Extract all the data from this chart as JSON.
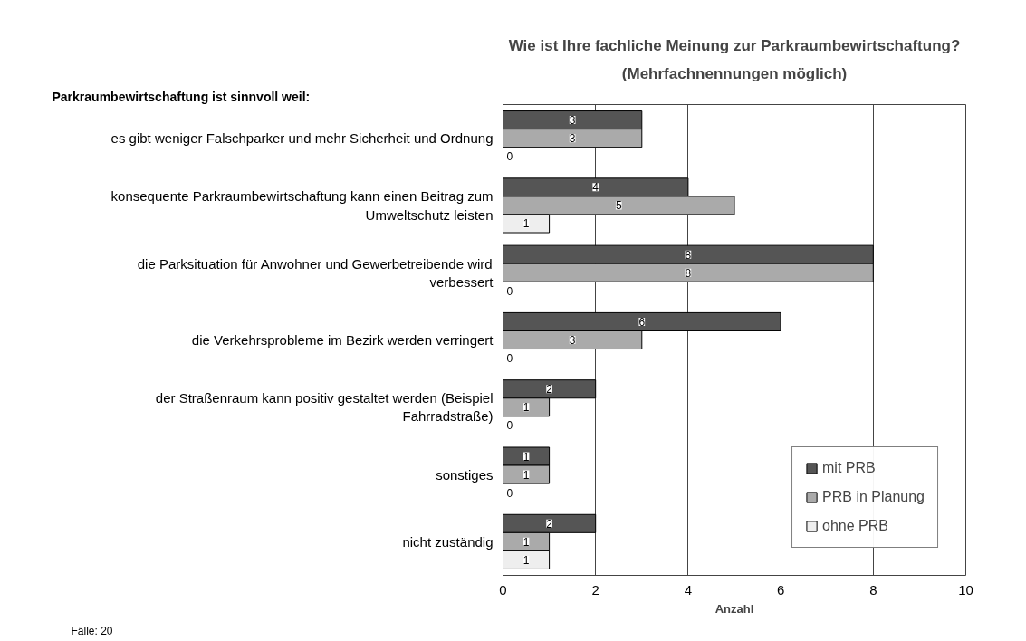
{
  "chart_data": {
    "type": "bar",
    "orientation": "horizontal",
    "title": "Wie ist Ihre fachliche Meinung zur Parkraumbewirtschaftung?",
    "subtitle": "(Mehrfachnennungen möglich)",
    "xlabel": "Anzahl",
    "categories": [
      "es gibt weniger Falschparker und mehr Sicherheit und Ordnung",
      "konsequente Parkraumbewirtschaftung kann einen Beitrag zum Umweltschutz leisten",
      "die Parksituation für Anwohner und Gewerbetreibende wird verbessert",
      "die Verkehrsprobleme im Bezirk werden verringert",
      "der Straßenraum kann positiv gestaltet werden (Beispiel Fahrradstraße)",
      "sonstiges",
      "nicht zuständig"
    ],
    "series": [
      {
        "name": "mit PRB",
        "color": "#555555",
        "values": [
          3,
          4,
          8,
          6,
          2,
          1,
          2
        ]
      },
      {
        "name": "PRB in Planung",
        "color": "#aaaaaa",
        "values": [
          3,
          5,
          8,
          3,
          1,
          1,
          1
        ]
      },
      {
        "name": "ohne PRB",
        "color": "#eeeeee",
        "values": [
          0,
          1,
          0,
          0,
          0,
          0,
          1
        ]
      }
    ],
    "xlim": [
      0,
      10
    ],
    "xticks": [
      0,
      2,
      4,
      6,
      8,
      10
    ],
    "grid": "x",
    "legend": "bottom right",
    "data_labels": true,
    "annotations": [
      "Parkraumbewirtschaftung ist sinnvoll weil:",
      "Fälle: 20"
    ]
  }
}
